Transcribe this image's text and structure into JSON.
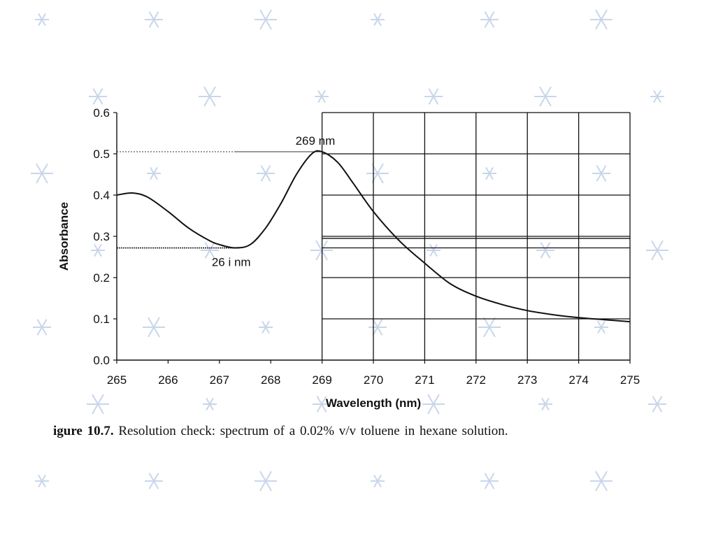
{
  "background": {
    "color": "#ffffff",
    "pattern": "snowflake-icon",
    "pattern_color": "#c9d6ea"
  },
  "chart_data": {
    "type": "line",
    "xlabel": "Wavelength (nm)",
    "ylabel": "Absorbance",
    "xlim": [
      265,
      275
    ],
    "ylim": [
      0,
      0.6
    ],
    "x_ticks": [
      "265",
      "266",
      "267",
      "268",
      "269",
      "270",
      "271",
      "272",
      "273",
      "274",
      "275"
    ],
    "y_ticks": [
      "0.0",
      "0.1",
      "0.2",
      "0.3",
      "0.4",
      "0.5",
      "0.6"
    ],
    "grid": "on for 269–275 nm",
    "line_color": "#111111",
    "series": [
      {
        "x": [
          265.0,
          265.3,
          265.6,
          266.0,
          266.4,
          266.8,
          267.0,
          267.3,
          267.6,
          267.9,
          268.2,
          268.5,
          268.8,
          269.0,
          269.3,
          269.6,
          270.0,
          270.5,
          271.0,
          271.5,
          272.0,
          272.5,
          273.0,
          273.5,
          274.0,
          274.5,
          275.0
        ],
        "y": [
          0.4,
          0.405,
          0.395,
          0.36,
          0.32,
          0.29,
          0.28,
          0.272,
          0.28,
          0.32,
          0.38,
          0.45,
          0.5,
          0.505,
          0.48,
          0.43,
          0.36,
          0.29,
          0.235,
          0.185,
          0.155,
          0.135,
          0.12,
          0.11,
          0.103,
          0.098,
          0.093
        ]
      }
    ],
    "annotations": [
      {
        "text": "269 nm",
        "x": 269.0,
        "y": 0.505
      },
      {
        "text": "26 i nm",
        "x": 267.3,
        "y": 0.272
      }
    ],
    "reference_lines": [
      0.505,
      0.272,
      0.295
    ]
  },
  "caption": {
    "label": "igure 10.7.",
    "text": "Resolution check: spectrum of a 0.02% v/v toluene in hexane solution."
  }
}
